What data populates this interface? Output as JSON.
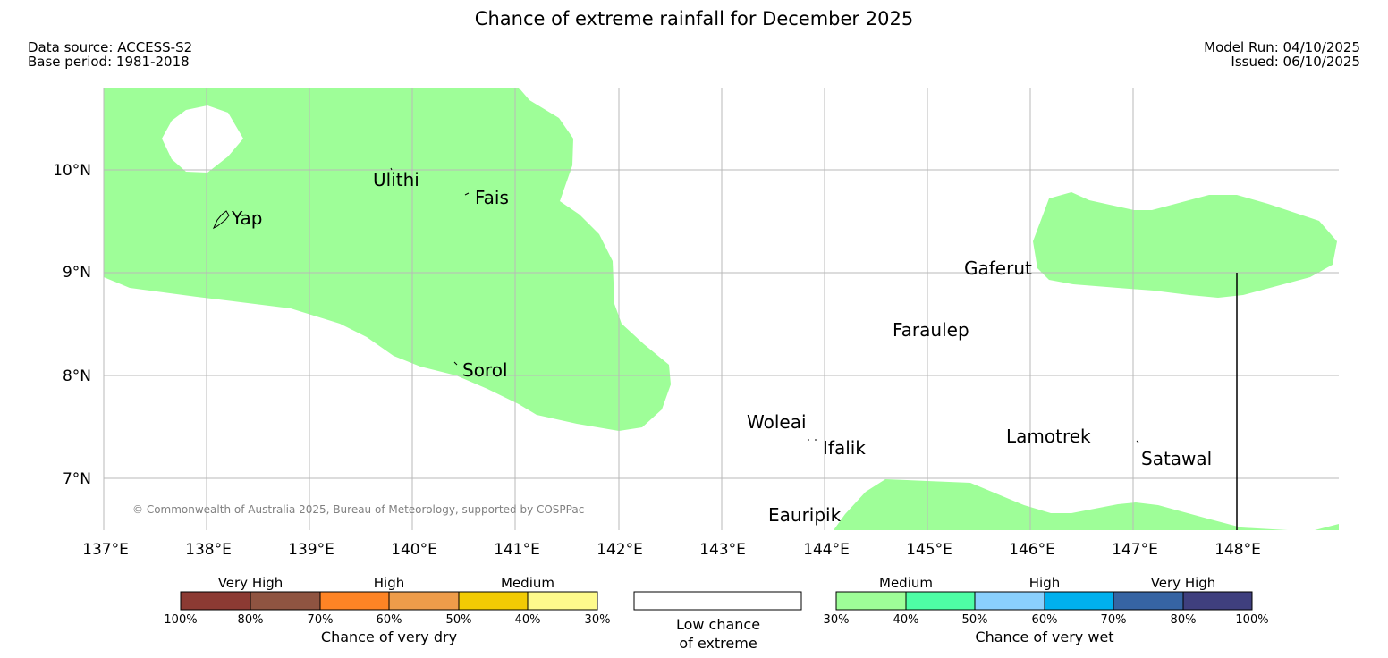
{
  "title": "Chance of extreme rainfall for December 2025",
  "meta": {
    "data_source": "Data source: ACCESS-S2",
    "base_period": "Base period: 1981-2018",
    "model_run": "Model Run: 04/10/2025",
    "issued": "Issued: 06/10/2025"
  },
  "map": {
    "lon_labels": [
      "137°E",
      "138°E",
      "139°E",
      "140°E",
      "141°E",
      "142°E",
      "143°E",
      "144°E",
      "145°E",
      "146°E",
      "147°E",
      "148°E"
    ],
    "lat_labels": [
      "10°N",
      "9°N",
      "8°N",
      "7°N"
    ],
    "places": {
      "yap": "Yap",
      "ulithi": "Ulithi",
      "fais": "Fais",
      "sorol": "Sorol",
      "gaferut": "Gaferut",
      "faraulep": "Faraulep",
      "woleai": "Woleai",
      "ifalik": "Ifalik",
      "lamotrek": "Lamotrek",
      "satawal": "Satawal",
      "eauripik": "Eauripik"
    },
    "copyright": "© Commonwealth of Australia 2025, Bureau of Meteorology, supported by COSPPac",
    "shading_color": "#9efe98"
  },
  "legend": {
    "dry": {
      "groups": [
        "Very High",
        "High",
        "Medium"
      ],
      "ticks": [
        "100%",
        "80%",
        "70%",
        "60%",
        "50%",
        "40%",
        "30%"
      ],
      "colors": [
        "#8c3a33",
        "#8f5441",
        "#fe8425",
        "#ee9c4a",
        "#f2cb04",
        "#fefa8c"
      ],
      "caption": "Chance of very dry"
    },
    "neutral": {
      "caption_line1": "Low chance",
      "caption_line2": "of extreme"
    },
    "wet": {
      "groups": [
        "Medium",
        "High",
        "Very High"
      ],
      "ticks": [
        "30%",
        "40%",
        "50%",
        "60%",
        "70%",
        "80%",
        "100%"
      ],
      "colors": [
        "#9efe98",
        "#4efea5",
        "#8ad0fd",
        "#00b0ee",
        "#3664a3",
        "#3f3f7e"
      ],
      "caption": "Chance of very wet"
    }
  }
}
